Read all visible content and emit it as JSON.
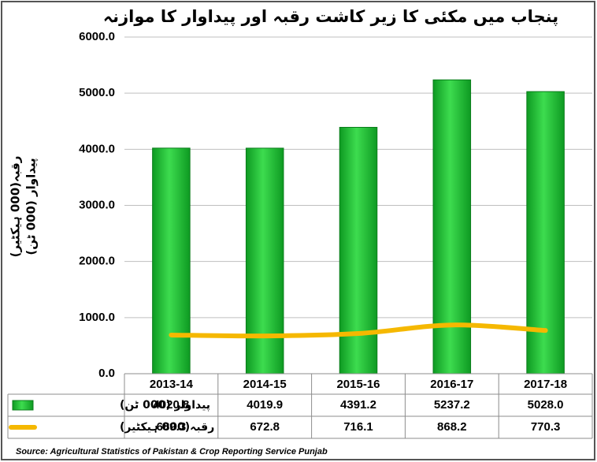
{
  "chart_data": {
    "type": "bar",
    "title": "پنجاب میں مکئی کا زیر کاشت رقبہ اور پیداوار کا موازنہ",
    "y_label": [
      "رقبہ(000 ہیکٹیر)",
      "پیداوار (000 ٹن)"
    ],
    "categories": [
      "2013-14",
      "2014-15",
      "2015-16",
      "2016-17",
      "2017-18"
    ],
    "series": [
      {
        "name": "پیداوار (000 ٹن)",
        "type": "bar",
        "color": "#22c33a",
        "values": [
          4020.8,
          4019.9,
          4391.2,
          5237.2,
          5028.0
        ],
        "value_labels": [
          "4020.8",
          "4019.9",
          "4391.2",
          "5237.2",
          "5028.0"
        ]
      },
      {
        "name": "رقبہ(000 ہیکٹیر)",
        "type": "line",
        "color": "#f5b800",
        "values": [
          689.3,
          672.8,
          716.1,
          868.2,
          770.3
        ],
        "value_labels": [
          "689.3",
          "672.8",
          "716.1",
          "868.2",
          "770.3"
        ]
      }
    ],
    "ylim": [
      0,
      6000
    ],
    "yticks": [
      {
        "value": 0,
        "label": "0.0"
      },
      {
        "value": 1000,
        "label": "1000.0"
      },
      {
        "value": 2000,
        "label": "2000.0"
      },
      {
        "value": 3000,
        "label": "3000.0"
      },
      {
        "value": 4000,
        "label": "4000.0"
      },
      {
        "value": 5000,
        "label": "5000.0"
      },
      {
        "value": 6000,
        "label": "6000.0"
      }
    ],
    "grid": true,
    "source": "Source: Agricultural Statistics of Pakistan & Crop Reporting Service Punjab"
  }
}
